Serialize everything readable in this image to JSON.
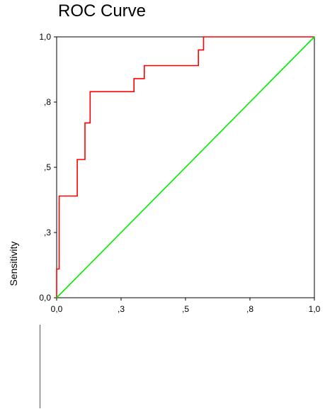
{
  "chart_data": {
    "type": "line",
    "title": "ROC Curve",
    "xlabel": "",
    "ylabel": "Sensitivity",
    "xlim": [
      0,
      1
    ],
    "ylim": [
      0,
      1
    ],
    "x_ticks": [
      {
        "value": 0.0,
        "label": "0,0"
      },
      {
        "value": 0.25,
        "label": ",3"
      },
      {
        "value": 0.5,
        "label": ",5"
      },
      {
        "value": 0.75,
        "label": ",8"
      },
      {
        "value": 1.0,
        "label": "1,0"
      }
    ],
    "y_ticks": [
      {
        "value": 0.0,
        "label": "0,0"
      },
      {
        "value": 0.25,
        "label": ",3"
      },
      {
        "value": 0.5,
        "label": ",5"
      },
      {
        "value": 0.75,
        "label": ",8"
      },
      {
        "value": 1.0,
        "label": "1,0"
      }
    ],
    "grid": false,
    "series": [
      {
        "color": "#ff0000",
        "x": [
          0.0,
          0.0,
          0.01,
          0.01,
          0.08,
          0.08,
          0.11,
          0.11,
          0.13,
          0.13,
          0.3,
          0.3,
          0.34,
          0.34,
          0.55,
          0.55,
          0.57,
          0.57,
          1.0
        ],
        "y": [
          0.0,
          0.11,
          0.11,
          0.39,
          0.39,
          0.53,
          0.53,
          0.67,
          0.67,
          0.79,
          0.79,
          0.84,
          0.84,
          0.89,
          0.89,
          0.95,
          0.95,
          1.0,
          1.0
        ]
      },
      {
        "color": "#00ee00",
        "x": [
          0,
          1
        ],
        "y": [
          0,
          1
        ]
      }
    ]
  }
}
